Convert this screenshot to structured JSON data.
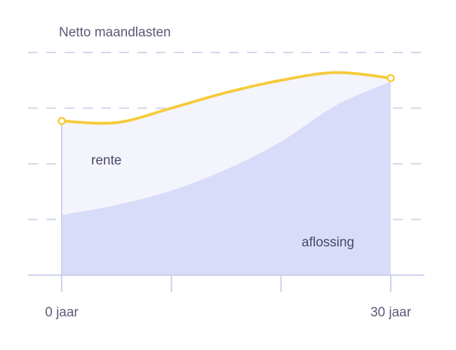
{
  "chart_data": {
    "type": "area",
    "title": "",
    "ylabel": "Netto maandlasten",
    "xlabel": "",
    "x_range": [
      0,
      30
    ],
    "y_range": [
      0,
      4
    ],
    "grid": true,
    "x_ticks": [
      0,
      10,
      20,
      30
    ],
    "x_tick_labels": [
      "0 jaar",
      "",
      "",
      "30 jaar"
    ],
    "series": [
      {
        "name": "aflossing",
        "label": "aflossing",
        "x": [
          0,
          5,
          10,
          15,
          20,
          25,
          30
        ],
        "values": [
          1.08,
          1.26,
          1.52,
          1.9,
          2.4,
          3.05,
          3.48
        ]
      },
      {
        "name": "rente",
        "label": "rente",
        "x": [
          0,
          5,
          10,
          15,
          20,
          25,
          30
        ],
        "values": [
          1.69,
          1.48,
          1.48,
          1.38,
          1.1,
          0.59,
          0.06
        ]
      }
    ],
    "total_line": {
      "x": [
        0,
        5,
        10,
        15,
        20,
        25,
        30
      ],
      "values": [
        2.77,
        2.74,
        3.0,
        3.28,
        3.5,
        3.64,
        3.54
      ]
    },
    "colors": {
      "aflossing": "#d9dcf8",
      "rente": "#f4f4fd",
      "total": "#f5cb3a",
      "grid": "#d3d6ea",
      "axis": "#cdd0ea"
    }
  }
}
